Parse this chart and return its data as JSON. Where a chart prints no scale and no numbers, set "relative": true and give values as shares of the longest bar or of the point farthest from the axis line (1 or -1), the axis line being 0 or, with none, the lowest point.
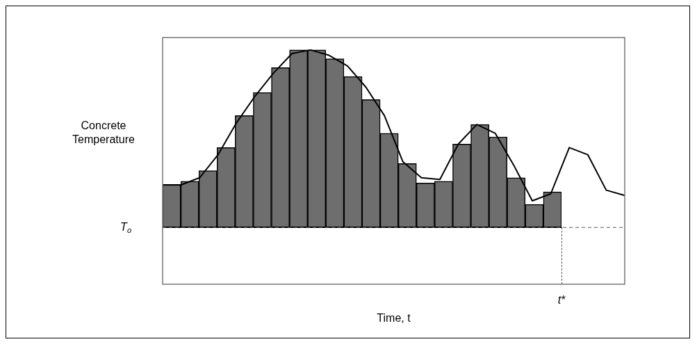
{
  "chart_data": [
    {
      "type": "bar",
      "relative": true,
      "categories": [
        null,
        null,
        null,
        null,
        null,
        null,
        null,
        null,
        null,
        null,
        null,
        null,
        null,
        null,
        null,
        null,
        null,
        null,
        null,
        null,
        null,
        null
      ],
      "series": [
        {
          "color": "#6e6e6e",
          "values": [
            0.24,
            0.26,
            0.32,
            0.45,
            0.63,
            0.76,
            0.9,
            1,
            1,
            0.95,
            0.85,
            0.72,
            0.53,
            0.36,
            0.25,
            0.26,
            0.47,
            0.58,
            0.51,
            0.28,
            0.13,
            0.2
          ]
        }
      ]
    },
    {
      "type": "line",
      "relative": true,
      "ylabel": "Concrete Temperature",
      "xlabel": "Time, t",
      "annotations": [
        "t*"
      ],
      "categories": [
        null,
        null,
        null,
        null,
        null,
        null,
        null,
        null,
        null,
        null,
        null,
        null,
        null,
        null,
        null,
        null,
        null,
        null,
        null,
        null,
        null,
        null,
        null,
        null,
        null,
        null
      ],
      "series": [
        {
          "color": "#000000",
          "values": [
            0.24,
            0.24,
            0.28,
            0.41,
            0.59,
            0.74,
            0.87,
            0.98,
            1,
            0.97,
            0.91,
            0.79,
            0.63,
            0.37,
            0.28,
            0.27,
            0.47,
            0.58,
            0.53,
            0.35,
            0.15,
            0.19,
            0.45,
            0.41,
            0.21,
            0.18
          ]
        }
      ],
      "ref_lines": [
        {
          "axis": "y",
          "value": 0,
          "label": "T$_{o}$",
          "line_style": "dashed"
        }
      ]
    }
  ]
}
